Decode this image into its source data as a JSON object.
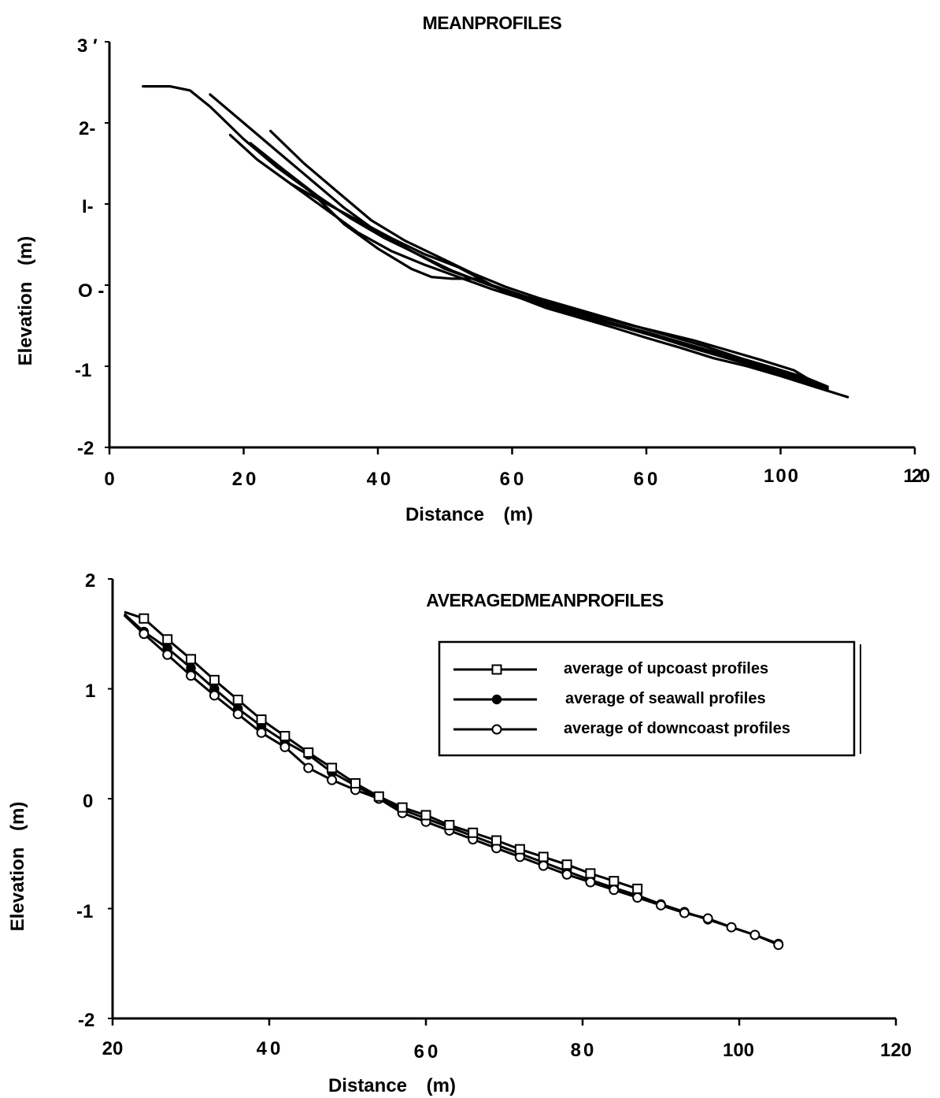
{
  "chart_data": [
    {
      "type": "line",
      "title": "MEANPROFILES",
      "xlabel": "Distance (m)",
      "ylabel": "Elevation (m)",
      "xlim": [
        0,
        120
      ],
      "ylim": [
        -2,
        3
      ],
      "x_tick_labels": [
        "0",
        "20",
        "40",
        "60",
        "60",
        "100",
        "120"
      ],
      "y_tick_labels": [
        "3 ′",
        "2-",
        "I-",
        "O -",
        "-1",
        "-2"
      ],
      "grid": false,
      "series": [
        {
          "x": [
            5,
            9,
            12,
            15,
            20,
            25,
            30,
            35,
            40,
            45,
            48,
            51,
            55,
            60,
            65,
            70,
            75,
            80,
            85,
            90,
            95,
            100,
            105,
            110
          ],
          "y": [
            2.45,
            2.45,
            2.4,
            2.2,
            1.8,
            1.45,
            1.15,
            0.75,
            0.45,
            0.2,
            0.1,
            0.08,
            0.08,
            -0.12,
            -0.28,
            -0.4,
            -0.52,
            -0.65,
            -0.77,
            -0.9,
            -1.0,
            -1.12,
            -1.25,
            -1.38
          ]
        },
        {
          "x": [
            15,
            20,
            25,
            30,
            35,
            40,
            45,
            50,
            55,
            60,
            65,
            70,
            75,
            80,
            85,
            90,
            95,
            100,
            105,
            107
          ],
          "y": [
            2.35,
            2.0,
            1.65,
            1.3,
            0.95,
            0.65,
            0.42,
            0.2,
            0.05,
            -0.1,
            -0.23,
            -0.35,
            -0.47,
            -0.58,
            -0.7,
            -0.82,
            -0.95,
            -1.07,
            -1.2,
            -1.27
          ]
        },
        {
          "x": [
            18,
            22,
            27,
            32,
            37,
            42,
            47,
            52,
            57,
            62,
            67,
            72,
            77,
            82,
            87,
            92,
            97,
            102,
            107
          ],
          "y": [
            1.85,
            1.55,
            1.25,
            0.95,
            0.65,
            0.42,
            0.25,
            0.1,
            -0.05,
            -0.18,
            -0.3,
            -0.42,
            -0.53,
            -0.65,
            -0.78,
            -0.9,
            -1.02,
            -1.15,
            -1.28
          ]
        },
        {
          "x": [
            21,
            26,
            31,
            36,
            41,
            46,
            51,
            56,
            61,
            66,
            71,
            76,
            81,
            86,
            91,
            96,
            101,
            106
          ],
          "y": [
            1.75,
            1.42,
            1.1,
            0.82,
            0.58,
            0.38,
            0.18,
            0.02,
            -0.13,
            -0.26,
            -0.37,
            -0.5,
            -0.62,
            -0.74,
            -0.86,
            -0.98,
            -1.1,
            -1.23
          ]
        },
        {
          "x": [
            24,
            29,
            34,
            39,
            44,
            49,
            54,
            59,
            64,
            69,
            74,
            79,
            84,
            89,
            94,
            99,
            104,
            107
          ],
          "y": [
            1.9,
            1.5,
            1.15,
            0.8,
            0.55,
            0.35,
            0.15,
            -0.02,
            -0.16,
            -0.28,
            -0.4,
            -0.52,
            -0.64,
            -0.76,
            -0.9,
            -1.02,
            -1.15,
            -1.25
          ]
        },
        {
          "x": [
            27,
            32,
            37,
            42,
            47,
            52,
            57,
            62,
            67,
            72,
            77,
            82,
            87,
            92,
            97,
            102,
            107
          ],
          "y": [
            1.25,
            1.02,
            0.8,
            0.58,
            0.38,
            0.22,
            0.0,
            -0.14,
            -0.25,
            -0.37,
            -0.48,
            -0.58,
            -0.68,
            -0.8,
            -0.92,
            -1.05,
            -1.3
          ]
        }
      ]
    },
    {
      "type": "line",
      "title": "AVERAGEDMEANPROFILES",
      "xlabel": "Distance (m)",
      "ylabel": "Elevation (m)",
      "xlim": [
        20,
        120
      ],
      "ylim": [
        -2,
        2
      ],
      "x_tick_labels": [
        "20",
        "40",
        "60",
        "80",
        "100",
        "120"
      ],
      "y_tick_labels": [
        "2",
        "1",
        "0",
        "-1",
        "-2"
      ],
      "grid": false,
      "legend": "top-right",
      "series": [
        {
          "name": "average of upcoast profiles",
          "marker": "square-open",
          "x": [
            21.5,
            24,
            27,
            30,
            33,
            36,
            39,
            42,
            45,
            48,
            51,
            54,
            57,
            60,
            63,
            66,
            69,
            72,
            75,
            78,
            81,
            84,
            87
          ],
          "y": [
            1.7,
            1.64,
            1.45,
            1.27,
            1.08,
            0.9,
            0.72,
            0.57,
            0.42,
            0.28,
            0.14,
            0.02,
            -0.08,
            -0.15,
            -0.24,
            -0.31,
            -0.38,
            -0.46,
            -0.53,
            -0.6,
            -0.68,
            -0.75,
            -0.82
          ]
        },
        {
          "name": "average of seawall profiles",
          "marker": "circle-filled",
          "x": [
            21.5,
            24,
            27,
            30,
            33,
            36,
            39,
            42,
            45,
            48,
            51,
            54,
            57,
            60,
            63,
            66,
            69,
            72,
            75,
            78,
            81,
            84,
            87,
            90,
            93,
            96,
            99,
            102,
            105
          ],
          "y": [
            1.68,
            1.52,
            1.37,
            1.19,
            1.0,
            0.82,
            0.66,
            0.52,
            0.4,
            0.24,
            0.12,
            0.0,
            -0.1,
            -0.18,
            -0.26,
            -0.34,
            -0.42,
            -0.5,
            -0.58,
            -0.66,
            -0.74,
            -0.81,
            -0.88,
            -0.96,
            -1.03,
            -1.1,
            -1.17,
            -1.24,
            -1.32
          ]
        },
        {
          "name": "average of downcoast profiles",
          "marker": "circle-open",
          "x": [
            21.5,
            24,
            27,
            30,
            33,
            36,
            39,
            42,
            45,
            48,
            51,
            54,
            57,
            60,
            63,
            66,
            69,
            72,
            75,
            78,
            81,
            84,
            87,
            90,
            93,
            96,
            99,
            102,
            105
          ],
          "y": [
            1.67,
            1.5,
            1.31,
            1.12,
            0.94,
            0.77,
            0.6,
            0.47,
            0.28,
            0.17,
            0.08,
            0.0,
            -0.13,
            -0.21,
            -0.29,
            -0.37,
            -0.45,
            -0.53,
            -0.61,
            -0.69,
            -0.76,
            -0.83,
            -0.9,
            -0.97,
            -1.04,
            -1.09,
            -1.17,
            -1.24,
            -1.33
          ]
        }
      ]
    }
  ]
}
